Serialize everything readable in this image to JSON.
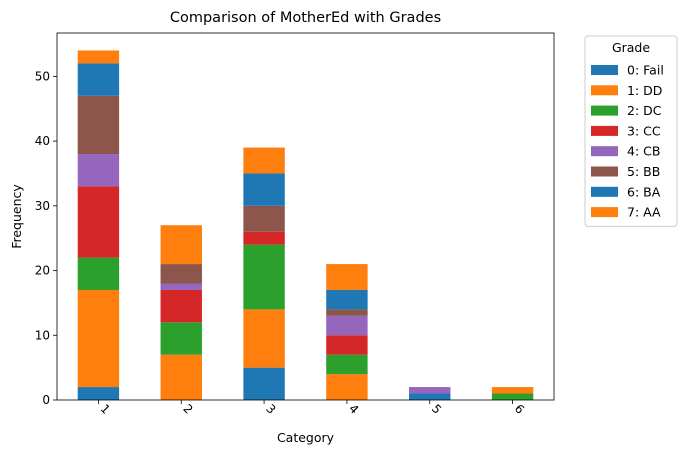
{
  "chart_data": {
    "type": "bar",
    "stacked": true,
    "title": "Comparison of MotherEd with Grades",
    "xlabel": "Category",
    "ylabel": "Frequency",
    "categories": [
      "1",
      "2",
      "3",
      "4",
      "5",
      "6"
    ],
    "ylim": [
      0,
      56.7
    ],
    "yticks": [
      0,
      10,
      20,
      30,
      40,
      50
    ],
    "grid": false,
    "legend": {
      "title": "Grade",
      "placement": "outside-top-right"
    },
    "series": [
      {
        "name": "0: Fail",
        "color": "#1f77b4",
        "values": [
          2,
          0,
          5,
          0,
          1,
          0
        ]
      },
      {
        "name": "1: DD",
        "color": "#ff7f0e",
        "values": [
          15,
          7,
          9,
          4,
          0,
          0
        ]
      },
      {
        "name": "2: DC",
        "color": "#2ca02c",
        "values": [
          5,
          5,
          10,
          3,
          0,
          1
        ]
      },
      {
        "name": "3: CC",
        "color": "#d62728",
        "values": [
          11,
          5,
          2,
          3,
          0,
          0
        ]
      },
      {
        "name": "4: CB",
        "color": "#9467bd",
        "values": [
          5,
          1,
          0,
          3,
          1,
          0
        ]
      },
      {
        "name": "5: BB",
        "color": "#8c564b",
        "values": [
          9,
          3,
          4,
          1,
          0,
          0
        ]
      },
      {
        "name": "6: BA",
        "color": "#1f77b4",
        "values": [
          5,
          0,
          5,
          3,
          0,
          0
        ]
      },
      {
        "name": "7: AA",
        "color": "#ff7f0e",
        "values": [
          2,
          6,
          4,
          4,
          0,
          1
        ]
      }
    ]
  }
}
